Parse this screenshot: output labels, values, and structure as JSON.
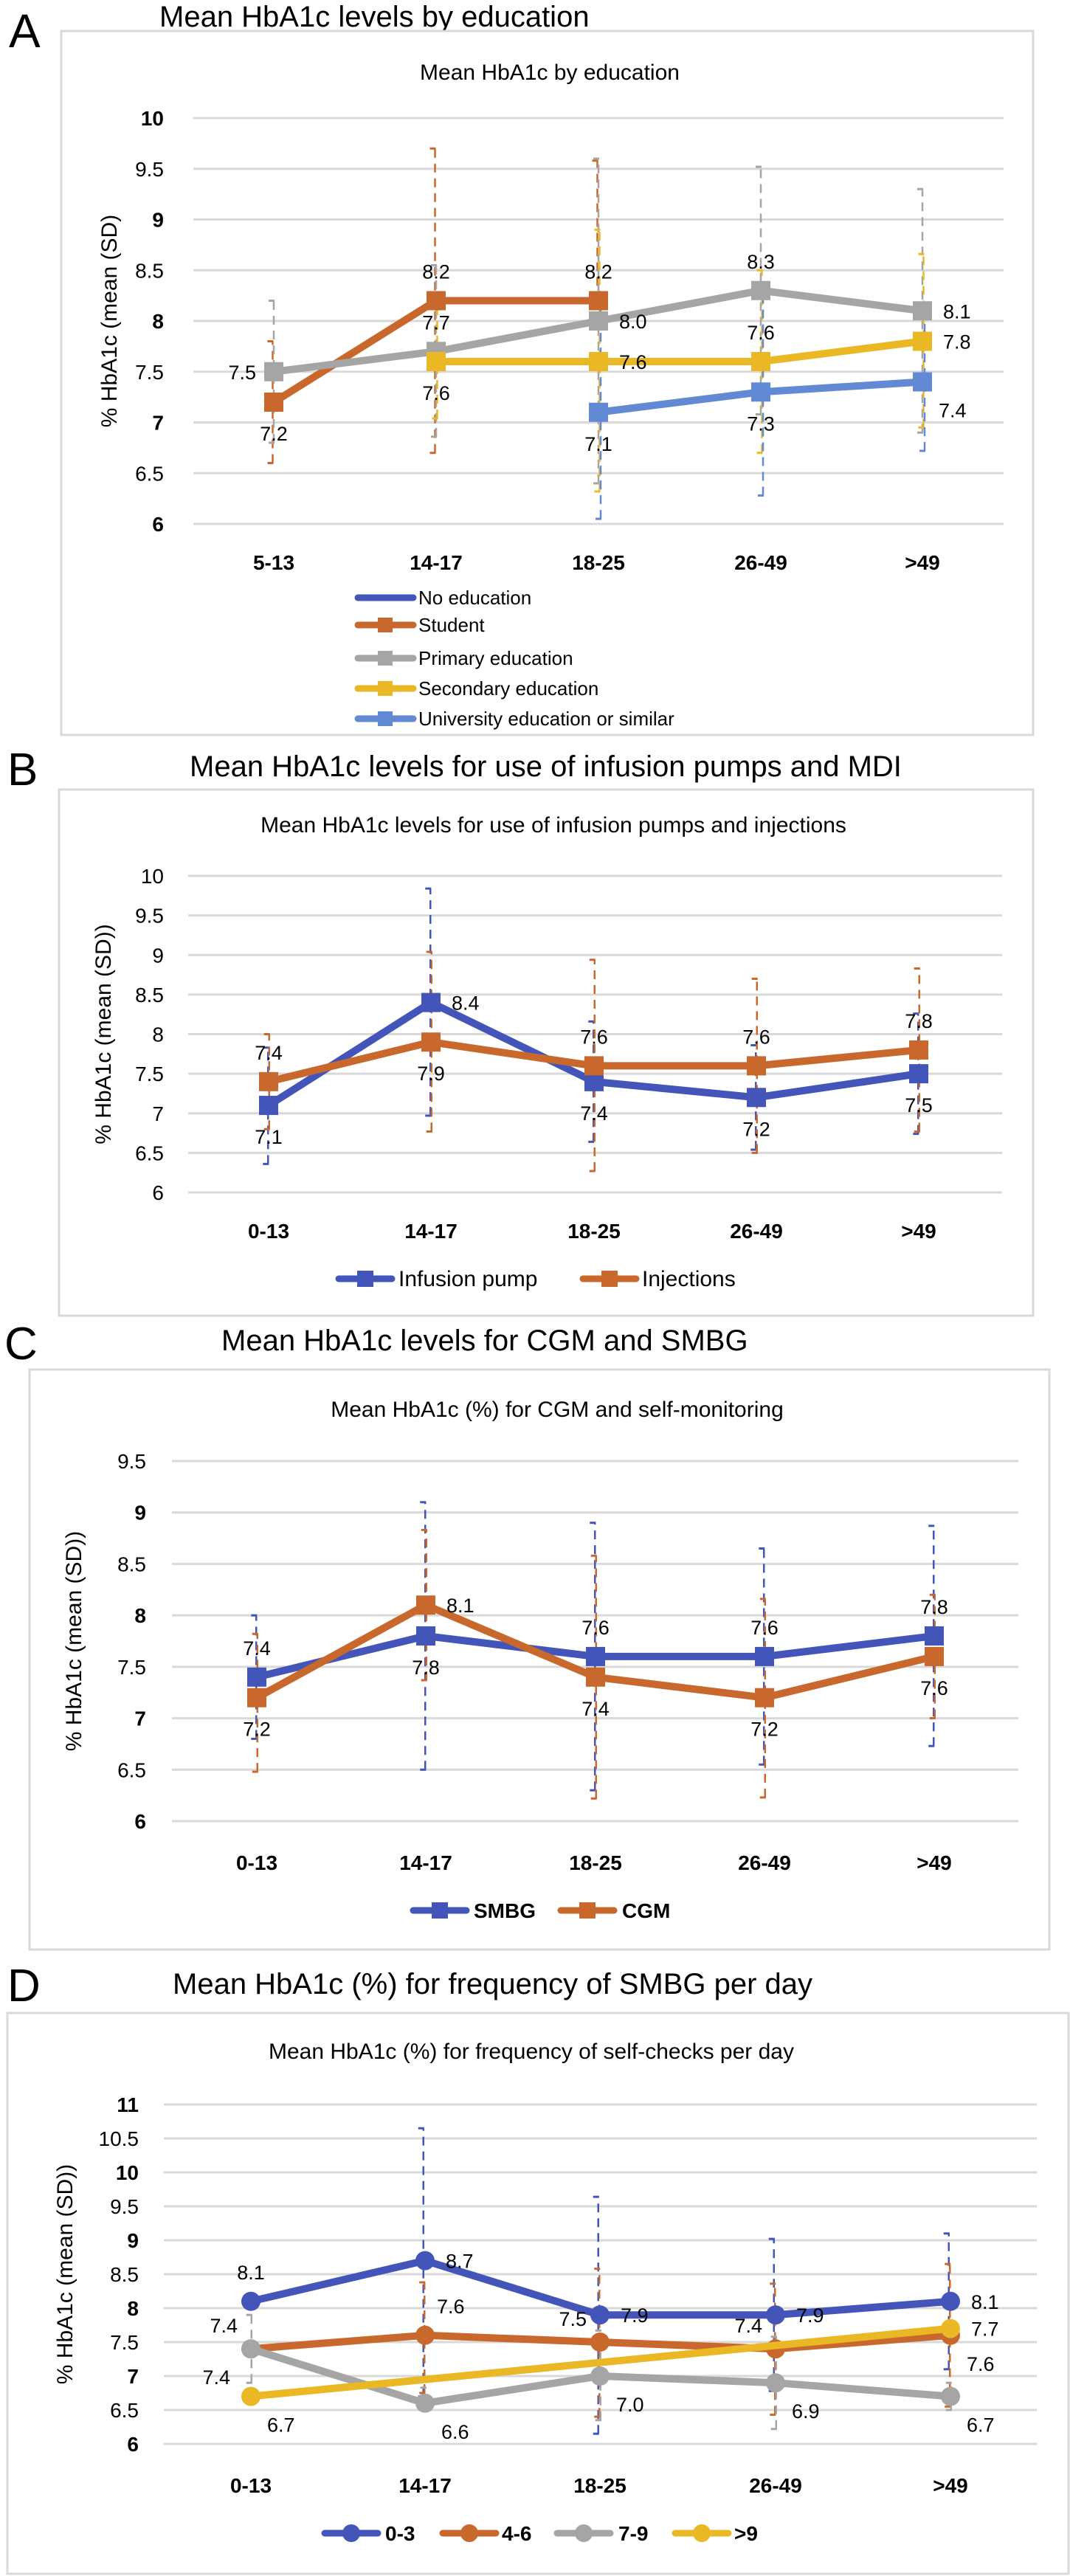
{
  "chart_data": [
    {
      "panel_label": "A",
      "type": "line",
      "title": "Mean HbA1c levels by education",
      "subtitle": "Mean HbA1c by education",
      "xlabel": "",
      "ylabel": "% HbA1c (mean (SD)",
      "ylim": [
        6,
        10
      ],
      "yticks": [
        "6",
        "6.5",
        "7",
        "7.5",
        "8",
        "8.5",
        "9",
        "9.5",
        "10"
      ],
      "grid": true,
      "legend_position": "bottom",
      "legend_layout": "vertical",
      "categories": [
        "5-13",
        "14-17",
        "18-25",
        "26-49",
        ">49"
      ],
      "series": [
        {
          "name": "No education",
          "color": "#4355b9",
          "marker": "none",
          "values": [
            null,
            null,
            null,
            null,
            null
          ],
          "sd_low": [
            null,
            null,
            null,
            null,
            null
          ],
          "sd_high": [
            null,
            null,
            null,
            null,
            null
          ],
          "labels": [
            null,
            null,
            null,
            null,
            null
          ]
        },
        {
          "name": "Student",
          "color": "#c8682d",
          "marker": "square",
          "values": [
            7.2,
            8.2,
            8.2,
            null,
            null
          ],
          "sd_low": [
            6.6,
            6.7,
            null,
            null,
            null
          ],
          "sd_high": [
            7.8,
            9.7,
            9.58,
            null,
            null
          ],
          "labels": [
            "7.2",
            "8.2",
            "8.2",
            null,
            null
          ],
          "label_pos": [
            "below",
            "above",
            "above",
            null,
            null
          ]
        },
        {
          "name": "Primary education",
          "color": "#a5a5a5",
          "marker": "square",
          "values": [
            7.5,
            7.7,
            8.0,
            8.3,
            8.1
          ],
          "sd_low": [
            6.8,
            6.86,
            6.4,
            7.08,
            6.9
          ],
          "sd_high": [
            8.2,
            8.55,
            9.6,
            9.52,
            9.3
          ],
          "labels": [
            "7.5",
            "7.7",
            "8.0",
            "8.3",
            "8.1"
          ],
          "label_pos": [
            "left",
            "above",
            "right",
            "above",
            "right"
          ]
        },
        {
          "name": "Secondary education",
          "color": "#e9b824",
          "marker": "square",
          "values": [
            null,
            7.6,
            7.6,
            7.6,
            7.8
          ],
          "sd_low": [
            null,
            7.04,
            6.32,
            6.7,
            6.95
          ],
          "sd_high": [
            null,
            8.15,
            8.9,
            8.5,
            8.66
          ],
          "labels": [
            null,
            "7.6",
            "7.6",
            "7.6",
            "7.8"
          ],
          "label_pos": [
            null,
            "below",
            "right",
            "above",
            "right"
          ]
        },
        {
          "name": "University education or similar",
          "color": "#628ad4",
          "marker": "square",
          "values": [
            null,
            null,
            7.1,
            7.3,
            7.4
          ],
          "sd_low": [
            null,
            null,
            6.05,
            6.28,
            6.72
          ],
          "sd_high": [
            null,
            null,
            8.15,
            8.32,
            8.08
          ],
          "labels": [
            null,
            null,
            "7.1",
            "7.3",
            "7.4"
          ],
          "label_pos": [
            null,
            null,
            "below",
            "below",
            "below-right"
          ]
        }
      ]
    },
    {
      "panel_label": "B",
      "type": "line",
      "title": "Mean HbA1c levels for use of infusion pumps and MDI",
      "subtitle": "Mean HbA1c levels for use of infusion pumps and injections",
      "xlabel": "",
      "ylabel": "% HbA1c (mean (SD))",
      "ylim": [
        6,
        10
      ],
      "yticks": [
        "6",
        "6.5",
        "7",
        "7.5",
        "8",
        "8.5",
        "9",
        "9.5",
        "10"
      ],
      "grid": true,
      "legend_position": "bottom",
      "legend_layout": "horizontal",
      "categories": [
        "0-13",
        "14-17",
        "18-25",
        "26-49",
        ">49"
      ],
      "series": [
        {
          "name": "Infusion pump",
          "color": "#4355b9",
          "marker": "square",
          "values": [
            7.1,
            8.4,
            7.4,
            7.2,
            7.5
          ],
          "sd_low": [
            6.36,
            6.97,
            6.64,
            6.54,
            6.74
          ],
          "sd_high": [
            7.83,
            9.84,
            8.16,
            7.86,
            8.26
          ],
          "labels": [
            "7.1",
            "8.4",
            "7.4",
            "7.2",
            "7.5"
          ],
          "label_pos": [
            "below",
            "right",
            "below",
            "below",
            "below"
          ]
        },
        {
          "name": "Injections",
          "color": "#c8682d",
          "marker": "square",
          "values": [
            7.4,
            7.9,
            7.6,
            7.6,
            7.8
          ],
          "sd_low": [
            6.8,
            6.77,
            6.27,
            6.5,
            6.77
          ],
          "sd_high": [
            8.0,
            9.04,
            8.94,
            8.7,
            8.83
          ],
          "labels": [
            "7.4",
            "7.9",
            "7.6",
            "7.6",
            "7.8"
          ],
          "label_pos": [
            "above",
            "below",
            "above",
            "above",
            "above"
          ]
        }
      ]
    },
    {
      "panel_label": "C",
      "type": "line",
      "title": "Mean HbA1c levels for CGM and SMBG",
      "subtitle": "Mean HbA1c (%) for CGM and self-monitoring",
      "xlabel": "",
      "ylabel": "% HbA1c (mean (SD))",
      "ylim": [
        6,
        9.5
      ],
      "yticks": [
        "6",
        "6.5",
        "7",
        "7.5",
        "8",
        "8.5",
        "9",
        "9.5"
      ],
      "grid": true,
      "legend_position": "bottom",
      "legend_layout": "horizontal",
      "categories": [
        "0-13",
        "14-17",
        "18-25",
        "26-49",
        ">49"
      ],
      "series": [
        {
          "name": "SMBG",
          "color": "#4355b9",
          "marker": "square",
          "values": [
            7.4,
            7.8,
            7.6,
            7.6,
            7.8
          ],
          "sd_low": [
            6.8,
            6.5,
            6.3,
            6.55,
            6.73
          ],
          "sd_high": [
            8.0,
            9.1,
            8.9,
            8.65,
            8.87
          ],
          "labels": [
            "7.4",
            "7.8",
            "7.6",
            "7.6",
            "7.8"
          ],
          "label_pos": [
            "above",
            "below",
            "above",
            "above",
            "above"
          ]
        },
        {
          "name": "CGM",
          "color": "#c8682d",
          "marker": "square",
          "values": [
            7.2,
            8.1,
            7.4,
            7.2,
            7.6
          ],
          "sd_low": [
            6.48,
            7.37,
            6.22,
            6.23,
            7.0
          ],
          "sd_high": [
            7.82,
            8.83,
            8.58,
            8.16,
            8.2
          ],
          "labels": [
            "7.2",
            "8.1",
            "7.4",
            "7.2",
            "7.6"
          ],
          "label_pos": [
            "below",
            "right",
            "below",
            "below",
            "below"
          ]
        }
      ]
    },
    {
      "panel_label": "D",
      "type": "line",
      "title": "Mean HbA1c (%) for frequency of SMBG per day",
      "subtitle": "Mean HbA1c (%) for frequency of self-checks per day",
      "xlabel": "",
      "ylabel": "% HbA1c (mean (SD))",
      "ylim": [
        6,
        11
      ],
      "yticks": [
        "6",
        "6.5",
        "7",
        "7.5",
        "8",
        "8.5",
        "9",
        "9.5",
        "10",
        "10.5",
        "11"
      ],
      "grid": true,
      "legend_position": "bottom",
      "legend_layout": "horizontal",
      "categories": [
        "0-13",
        "14-17",
        "18-25",
        "26-49",
        ">49"
      ],
      "series": [
        {
          "name": "0-3",
          "color": "#4355b9",
          "marker": "circle",
          "values": [
            8.1,
            8.7,
            7.9,
            7.9,
            8.1
          ],
          "sd_low": [
            null,
            6.7,
            6.15,
            6.78,
            7.1
          ],
          "sd_high": [
            null,
            10.65,
            9.64,
            9.02,
            9.1
          ],
          "labels": [
            "8.1",
            "8.7",
            "7.9",
            "7.9",
            "8.1"
          ],
          "label_pos": [
            "above",
            "right",
            "right",
            "right",
            "right"
          ]
        },
        {
          "name": "4-6",
          "color": "#c8682d",
          "marker": "circle",
          "values": [
            7.4,
            7.6,
            7.5,
            7.4,
            7.6
          ],
          "sd_low": [
            null,
            6.75,
            6.4,
            6.43,
            6.55
          ],
          "sd_high": [
            null,
            8.38,
            8.58,
            8.36,
            8.65
          ],
          "labels": [
            "7.4",
            "7.6",
            "7.5",
            "7.4",
            "7.6"
          ],
          "label_pos": [
            "above-left",
            "above-right",
            "above-left",
            "above-left",
            "below-right"
          ]
        },
        {
          "name": "7-9",
          "color": "#a5a5a5",
          "marker": "circle",
          "values": [
            7.4,
            6.6,
            7.0,
            6.9,
            6.7
          ],
          "sd_low": [
            6.9,
            6.6,
            6.35,
            6.22,
            6.5
          ],
          "sd_high": [
            7.9,
            6.83,
            7.67,
            7.58,
            6.9
          ],
          "labels": [
            "7.4",
            "6.6",
            "7.0",
            "6.9",
            "6.7"
          ],
          "label_pos": [
            "below-left",
            "below-right",
            "below-right",
            "below-right",
            "below-right"
          ]
        },
        {
          "name": ">9",
          "color": "#e9b824",
          "marker": "circle",
          "values": [
            6.7,
            null,
            null,
            null,
            7.7
          ],
          "sd_low": [
            null,
            null,
            null,
            null,
            null
          ],
          "sd_high": [
            null,
            null,
            null,
            null,
            null
          ],
          "labels": [
            "6.7",
            null,
            null,
            null,
            "7.7"
          ],
          "label_pos": [
            "below-right",
            null,
            null,
            null,
            "right"
          ]
        }
      ]
    }
  ]
}
